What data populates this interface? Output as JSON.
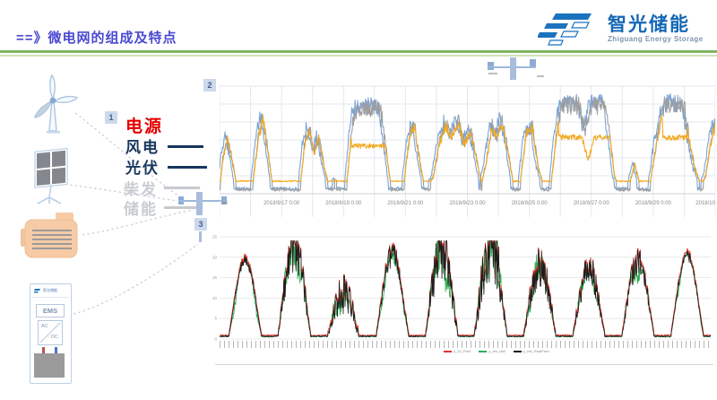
{
  "slide": {
    "title": "==》微电网的组成及特点"
  },
  "logo": {
    "name": "智光储能",
    "subtitle": "Zhiguang Energy Storage",
    "brand_blue": "#1467b4"
  },
  "diagram": {
    "badges": [
      "1",
      "2",
      "3"
    ],
    "power_label": "电源",
    "sources": [
      {
        "label": "风电",
        "active": true
      },
      {
        "label": "光伏",
        "active": true
      },
      {
        "label": "柴发",
        "active": false
      },
      {
        "label": "储能",
        "active": false
      }
    ],
    "icons": [
      "wind-turbine-icon",
      "solar-panel-icon",
      "diesel-generator-icon",
      "ems-cabinet-icon",
      "busbar-icon"
    ],
    "ems": {
      "mini_logo_text": "智光储能",
      "unit_label": "EMS",
      "converter_ac": "AC",
      "converter_dc": "DC"
    },
    "colors": {
      "active_text": "#17375e",
      "inactive_text": "#c9cdd2",
      "power_red": "#e60000",
      "busbar_blue": "#a9bddc",
      "connector_gray": "#c9cdd3"
    }
  },
  "chart_data": [
    {
      "id": "wind-available-vs-actual",
      "type": "line",
      "title": "",
      "xlabel": "",
      "ylabel": "",
      "x_tick_labels": [
        "00",
        "2018/9/17 0:00",
        "2018/9/19 0:00",
        "2018/9/21 0:00",
        "2018/9/23 0:00",
        "2018/9/25 0:00",
        "2018/9/27 0:00",
        "2018/9/29 0:00",
        "2018/10"
      ],
      "x_range_days": 16,
      "grid": true,
      "ylim": [
        0,
        1
      ],
      "series": [
        {
          "name": "available-power-blue",
          "color": "#7aa4d6"
        },
        {
          "name": "available-power-gray",
          "color": "#9e9e9e"
        },
        {
          "name": "actual-output-orange",
          "color": "#f3a81f"
        }
      ],
      "envelope_day_value": [
        [
          0,
          0.05
        ],
        [
          0.1,
          0.35
        ],
        [
          0.25,
          0.55
        ],
        [
          0.4,
          0.35
        ],
        [
          0.55,
          0.1
        ],
        [
          0.8,
          0.04
        ],
        [
          1.05,
          0.06
        ],
        [
          1.25,
          0.55
        ],
        [
          1.4,
          0.75
        ],
        [
          1.55,
          0.45
        ],
        [
          1.7,
          0.12
        ],
        [
          1.95,
          0.04
        ],
        [
          2.15,
          0.05
        ],
        [
          2.3,
          0.14
        ],
        [
          2.45,
          0.05
        ],
        [
          2.6,
          0.1
        ],
        [
          2.75,
          0.5
        ],
        [
          2.9,
          0.65
        ],
        [
          3.05,
          0.4
        ],
        [
          3.2,
          0.55
        ],
        [
          3.4,
          0.25
        ],
        [
          3.55,
          0.07
        ],
        [
          3.75,
          0.16
        ],
        [
          3.9,
          0.07
        ],
        [
          4.1,
          0.1
        ],
        [
          4.3,
          0.72
        ],
        [
          4.45,
          0.82
        ],
        [
          5.2,
          0.82
        ],
        [
          5.35,
          0.5
        ],
        [
          5.5,
          0.15
        ],
        [
          5.7,
          0.06
        ],
        [
          5.95,
          0.12
        ],
        [
          6.15,
          0.6
        ],
        [
          6.3,
          0.65
        ],
        [
          6.5,
          0.25
        ],
        [
          6.65,
          0.06
        ],
        [
          6.9,
          0.18
        ],
        [
          7.1,
          0.5
        ],
        [
          7.3,
          0.68
        ],
        [
          7.5,
          0.55
        ],
        [
          7.7,
          0.72
        ],
        [
          7.9,
          0.5
        ],
        [
          8.1,
          0.62
        ],
        [
          8.3,
          0.35
        ],
        [
          8.45,
          0.12
        ],
        [
          8.6,
          0.3
        ],
        [
          8.8,
          0.68
        ],
        [
          8.95,
          0.55
        ],
        [
          9.1,
          0.72
        ],
        [
          9.3,
          0.45
        ],
        [
          9.5,
          0.08
        ],
        [
          9.7,
          0.12
        ],
        [
          9.9,
          0.6
        ],
        [
          10.1,
          0.65
        ],
        [
          10.3,
          0.25
        ],
        [
          10.5,
          0.06
        ],
        [
          10.7,
          0.1
        ],
        [
          10.9,
          0.65
        ],
        [
          11.05,
          0.85
        ],
        [
          11.6,
          0.85
        ],
        [
          11.8,
          0.62
        ],
        [
          12.0,
          0.85
        ],
        [
          12.45,
          0.85
        ],
        [
          12.6,
          0.55
        ],
        [
          12.75,
          0.18
        ],
        [
          12.95,
          0.05
        ],
        [
          13.2,
          0.08
        ],
        [
          13.4,
          0.3
        ],
        [
          13.6,
          0.08
        ],
        [
          13.9,
          0.12
        ],
        [
          14.1,
          0.5
        ],
        [
          14.35,
          0.85
        ],
        [
          15.0,
          0.85
        ],
        [
          15.15,
          0.55
        ],
        [
          15.35,
          0.25
        ],
        [
          15.55,
          0.1
        ],
        [
          15.7,
          0.2
        ],
        [
          15.85,
          0.5
        ],
        [
          16,
          0.68
        ]
      ],
      "orange_caps": [
        [
          4.25,
          5.4,
          0.47
        ],
        [
          10.95,
          12.65,
          0.55
        ],
        [
          14.3,
          15.1,
          0.55
        ]
      ],
      "orange_dips": [
        [
          11.7,
          12.1,
          0.33
        ]
      ],
      "orange_night_floor": 0.135
    },
    {
      "id": "daily-generation-forecast",
      "type": "line",
      "title": "",
      "xlabel": "",
      "ylabel": "",
      "y_tick_labels": [
        "25",
        "20",
        "15",
        "10",
        "5",
        "0"
      ],
      "ylim": [
        0,
        25
      ],
      "x_range_days": 10,
      "grid": true,
      "legend_position": "bottom",
      "series": [
        {
          "name": "fact-green",
          "color": "#2fae55",
          "legend": "y_res_fact"
        },
        {
          "name": "forecast-red",
          "color": "#e0342b",
          "legend": "y_24_Pred"
        },
        {
          "name": "real-black",
          "color": "#1c1c1c",
          "legend": "y_res_RealPred"
        }
      ],
      "daily_peaks": [
        0.8,
        0.95,
        0.45,
        0.85,
        0.9,
        0.97,
        0.75,
        0.7,
        0.78,
        0.85
      ],
      "daily_spikiness": [
        0.06,
        0.28,
        0.45,
        0.15,
        0.35,
        0.4,
        0.3,
        0.25,
        0.18,
        0.06
      ],
      "green_dip_depth": [
        0.35,
        0.25,
        0.3,
        0.25,
        0.3,
        0.3,
        0.25,
        0.2,
        0.3,
        0.18
      ]
    }
  ]
}
